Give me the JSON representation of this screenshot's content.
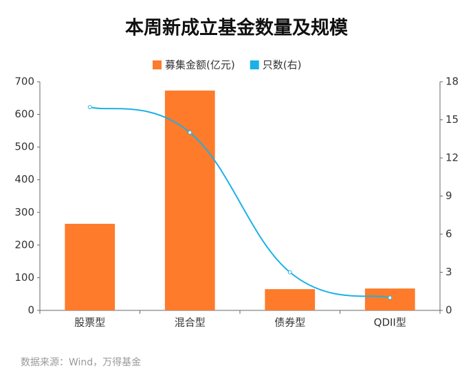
{
  "chart_data": {
    "type": "bar",
    "title": "本周新成立基金数量及规模",
    "source": "数据来源：Wind，万得基金",
    "categories": [
      "股票型",
      "混合型",
      "债券型",
      "QDII型"
    ],
    "series": [
      {
        "name": "募集金额(亿元)",
        "type": "bar",
        "color": "#fe7b2b",
        "values": [
          265,
          673,
          65,
          67
        ]
      },
      {
        "name": "只数(右)",
        "type": "line",
        "axis": "y2",
        "color": "#1bb1e6",
        "values": [
          16,
          14,
          3,
          1
        ]
      }
    ],
    "ylim": [
      0,
      700
    ],
    "yticks": [
      0,
      100,
      200,
      300,
      400,
      500,
      600,
      700
    ],
    "y2lim": [
      0,
      18
    ],
    "y2ticks": [
      0,
      3,
      6,
      9,
      12,
      15,
      18
    ],
    "legend": "top"
  }
}
